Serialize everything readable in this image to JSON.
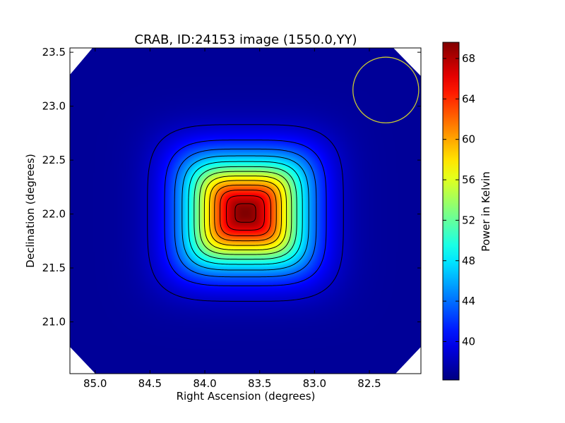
{
  "chart_data": {
    "type": "heatmap",
    "title": "CRAB, ID:24153 image (1550.0,YY)",
    "xlabel": "Right Ascension (degrees)",
    "ylabel": "Declination (degrees)",
    "xlim": [
      85.23,
      82.03
    ],
    "ylim": [
      20.52,
      23.54
    ],
    "x_ticks": [
      85.0,
      84.5,
      84.0,
      83.5,
      83.0,
      82.5
    ],
    "x_tick_labels": [
      "85.0",
      "84.5",
      "84.0",
      "83.5",
      "83.0",
      "82.5"
    ],
    "y_ticks": [
      21.0,
      21.5,
      22.0,
      22.5,
      23.0,
      23.5
    ],
    "y_tick_labels": [
      "21.0",
      "21.5",
      "22.0",
      "22.5",
      "23.0",
      "23.5"
    ],
    "colormap": "jet",
    "colorbar": {
      "label": "Power in Kelvin",
      "vmin": 36.2,
      "vmax": 69.6,
      "ticks": [
        40,
        44,
        48,
        52,
        56,
        60,
        64,
        68
      ],
      "tick_labels": [
        "40",
        "44",
        "48",
        "52",
        "56",
        "60",
        "64",
        "68"
      ]
    },
    "source": {
      "ra": 83.63,
      "dec": 22.01,
      "peak": 69.6,
      "background": 37.0,
      "sigma_ra": 0.36,
      "sigma_dec": 0.33
    },
    "contour_levels": [
      38.5,
      41,
      43.5,
      46,
      48.5,
      51,
      53.5,
      56,
      58.5,
      61,
      63.5,
      66,
      68.5
    ],
    "beam_circle": {
      "ra": 82.35,
      "dec": 23.15,
      "radius_deg": 0.3,
      "color": "#c8c832"
    },
    "corner_masks": "white",
    "grid": false
  }
}
